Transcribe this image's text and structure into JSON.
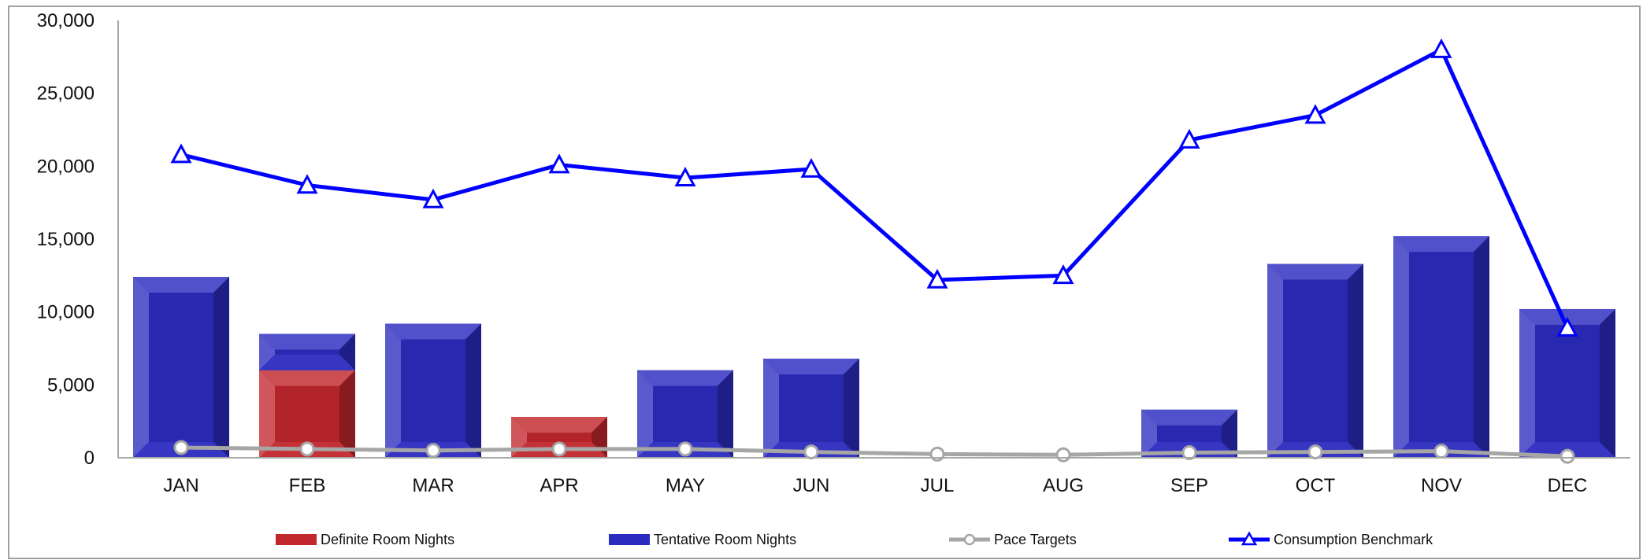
{
  "chart_data": {
    "type": "bar",
    "categories": [
      "JAN",
      "FEB",
      "MAR",
      "APR",
      "MAY",
      "JUN",
      "JUL",
      "AUG",
      "SEP",
      "OCT",
      "NOV",
      "DEC"
    ],
    "series": [
      {
        "name": "Definite Room Nights",
        "kind": "bar",
        "stack": "rooms",
        "color": "#C1272D",
        "values": [
          0,
          6000,
          0,
          2800,
          0,
          0,
          0,
          0,
          0,
          0,
          0,
          0
        ]
      },
      {
        "name": "Tentative Room Nights",
        "kind": "bar",
        "stack": "rooms",
        "color": "#2B2BBF",
        "values": [
          12400,
          2500,
          9200,
          0,
          6000,
          6800,
          0,
          0,
          3300,
          13300,
          15200,
          10200
        ]
      },
      {
        "name": "Pace Targets",
        "kind": "line",
        "color": "#A6A6A6",
        "values": [
          700,
          600,
          500,
          600,
          600,
          400,
          250,
          200,
          350,
          400,
          450,
          100
        ]
      },
      {
        "name": "Consumption Benchmark",
        "kind": "line",
        "color": "#0000FF",
        "values": [
          20800,
          18700,
          17700,
          20100,
          19200,
          19800,
          12200,
          12500,
          21800,
          23500,
          28000,
          8900
        ]
      }
    ],
    "y_ticks": [
      "30,000",
      "25,000",
      "20,000",
      "15,000",
      "10,000",
      "5,000",
      "0"
    ],
    "ylim": [
      0,
      30000
    ],
    "legend_position": "bottom",
    "grid": false
  }
}
